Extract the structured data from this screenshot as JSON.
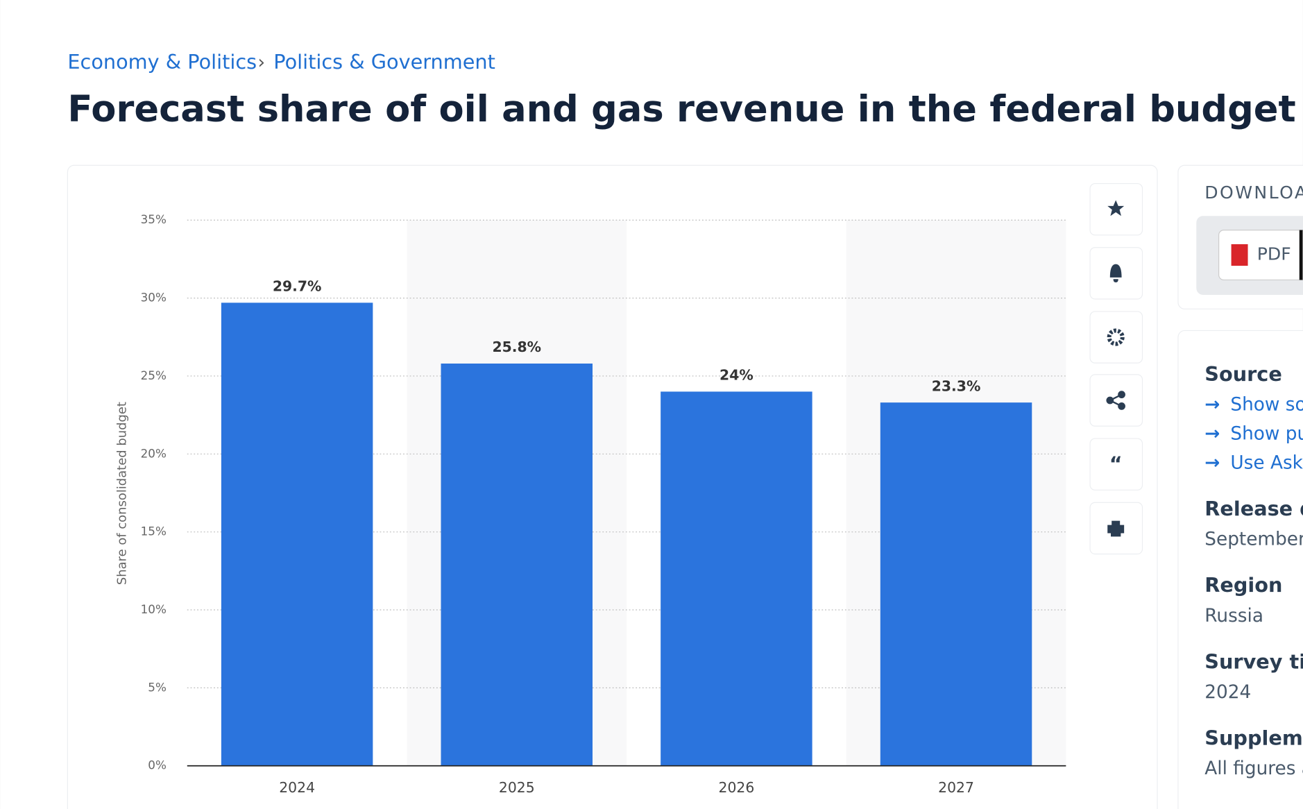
{
  "breadcrumb": [
    "Economy & Politics",
    "Politics & Government"
  ],
  "chart_data": {
    "type": "bar",
    "title": "Forecast share of oil and gas revenue in the federal budget in Russia",
    "categories": [
      "2024",
      "2025",
      "2026",
      "2027"
    ],
    "values": [
      29.7,
      25.8,
      24,
      23.3
    ],
    "value_labels": [
      "29.7%",
      "25.8%",
      "24%",
      "23.3%"
    ],
    "color": "#2b74dd",
    "y_label": "Share of consolidated budget",
    "ylim": [
      0,
      35
    ],
    "yticks": [
      {
        "value": 0,
        "label": "0%"
      },
      {
        "value": 5,
        "label": "5%"
      },
      {
        "value": 10,
        "label": "10%"
      },
      {
        "value": 15,
        "label": "15%"
      },
      {
        "value": 20,
        "label": "20%"
      },
      {
        "value": 25,
        "label": "25%"
      },
      {
        "value": 30,
        "label": "30%"
      },
      {
        "value": 35,
        "label": "35%"
      }
    ],
    "grid": true
  },
  "download": {
    "heading": "DOWNLOA",
    "pdf": "PDF"
  },
  "sidebar": {
    "source": {
      "heading": "Source",
      "links": [
        "Show so",
        "Show pu",
        "Use Ask"
      ]
    },
    "items": [
      {
        "heading": "Release d",
        "text": "September"
      },
      {
        "heading": "Region",
        "text": "Russia"
      },
      {
        "heading": "Survey tir",
        "text": "2024"
      },
      {
        "heading": "Suppleme",
        "text": "All figures a"
      }
    ]
  }
}
